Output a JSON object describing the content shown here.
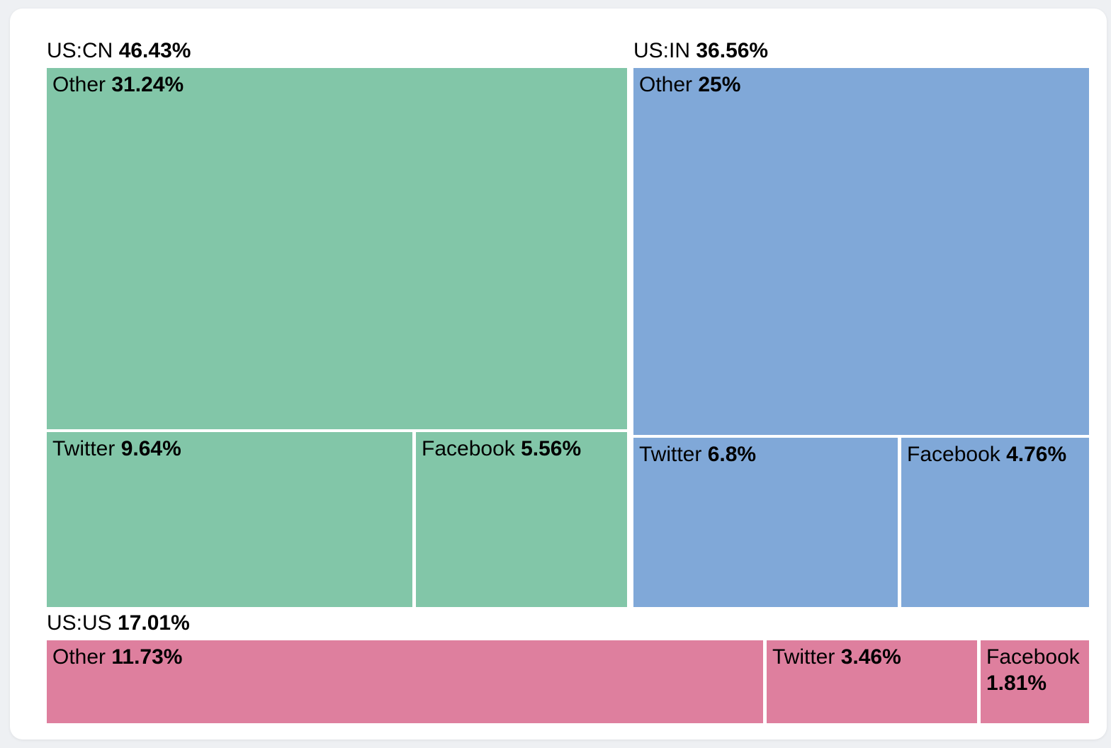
{
  "chart_data": {
    "type": "treemap",
    "title": "",
    "unit": "%",
    "legend_position": "none",
    "groups": [
      {
        "name": "US:CN",
        "value": 46.43,
        "value_label": "46.43%",
        "color": "#82c6a8",
        "children": [
          {
            "name": "Other",
            "value": 31.24,
            "value_label": "31.24%"
          },
          {
            "name": "Twitter",
            "value": 9.64,
            "value_label": "9.64%"
          },
          {
            "name": "Facebook",
            "value": 5.56,
            "value_label": "5.56%"
          }
        ]
      },
      {
        "name": "US:IN",
        "value": 36.56,
        "value_label": "36.56%",
        "color": "#80a8d8",
        "children": [
          {
            "name": "Other",
            "value": 25,
            "value_label": "25%"
          },
          {
            "name": "Twitter",
            "value": 6.8,
            "value_label": "6.8%"
          },
          {
            "name": "Facebook",
            "value": 4.76,
            "value_label": "4.76%"
          }
        ]
      },
      {
        "name": "US:US",
        "value": 17.01,
        "value_label": "17.01%",
        "color": "#de7f9e",
        "children": [
          {
            "name": "Other",
            "value": 11.73,
            "value_label": "11.73%"
          },
          {
            "name": "Twitter",
            "value": 3.46,
            "value_label": "3.46%"
          },
          {
            "name": "Facebook",
            "value": 1.81,
            "value_label": "1.81%"
          }
        ]
      }
    ]
  }
}
